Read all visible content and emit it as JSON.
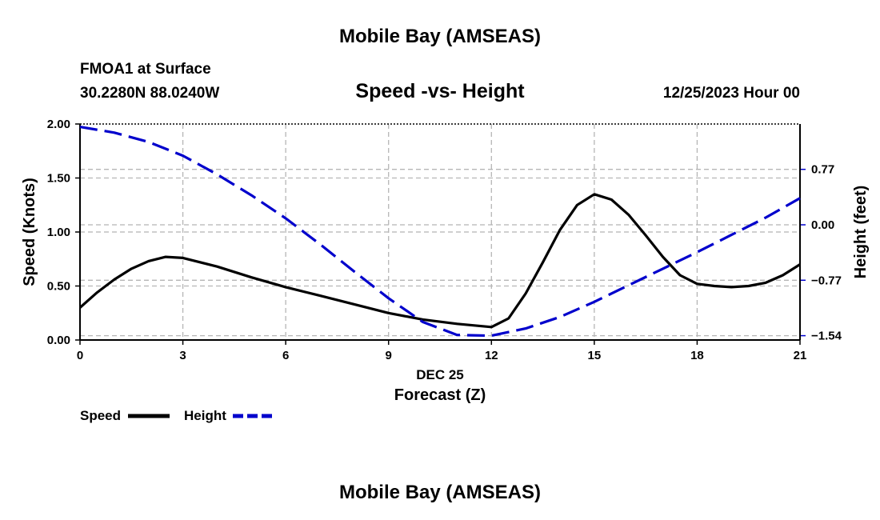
{
  "page": {
    "title_top": "Mobile Bay (AMSEAS)",
    "title_bottom": "Mobile Bay (AMSEAS)",
    "station": "FMOA1 at Surface",
    "coords": "30.2280N  88.0240W",
    "datetime": "12/25/2023 Hour 00"
  },
  "chart_data": {
    "type": "line",
    "title": "Speed -vs- Height",
    "xlabel_date": "DEC 25",
    "xlabel": "Forecast (Z)",
    "ylabel": "Speed (Knots)",
    "ylabel_right": "Height (feet)",
    "xlim": [
      0,
      21
    ],
    "ylim": [
      0,
      2
    ],
    "ylim_right": [
      -1.6,
      1.4
    ],
    "x_ticks": [
      "0",
      "3",
      "6",
      "9",
      "12",
      "15",
      "18",
      "21"
    ],
    "y_ticks": [
      "0.00",
      "0.50",
      "1.00",
      "1.50",
      "2.00"
    ],
    "y_ticks_right": [
      "−1.54",
      "−0.77",
      "0.00",
      "0.77"
    ],
    "legend": {
      "speed_label": "Speed",
      "height_label": "Height"
    },
    "colors": {
      "speed": "#000000",
      "height": "#0000cc",
      "grid": "#b5b5b5"
    },
    "series": [
      {
        "name": "Speed",
        "axis": "left",
        "style": "solid",
        "x": [
          0,
          0.5,
          1,
          1.5,
          2,
          2.5,
          3,
          4,
          5,
          6,
          7,
          8,
          9,
          10,
          11,
          12,
          12.5,
          13,
          13.5,
          14,
          14.5,
          15,
          15.5,
          16,
          16.5,
          17,
          17.5,
          18,
          18.5,
          19,
          19.5,
          20,
          20.5,
          21
        ],
        "values": [
          0.3,
          0.44,
          0.56,
          0.66,
          0.73,
          0.77,
          0.76,
          0.68,
          0.58,
          0.49,
          0.41,
          0.33,
          0.25,
          0.19,
          0.15,
          0.12,
          0.2,
          0.43,
          0.72,
          1.02,
          1.25,
          1.35,
          1.3,
          1.16,
          0.97,
          0.77,
          0.6,
          0.52,
          0.5,
          0.49,
          0.5,
          0.53,
          0.6,
          0.7
        ]
      },
      {
        "name": "Height",
        "axis": "right",
        "style": "dashed",
        "x": [
          0,
          1,
          2,
          3,
          4,
          5,
          6,
          7,
          8,
          9,
          10,
          11,
          12,
          13,
          14,
          15,
          16,
          17,
          18,
          19,
          20,
          21
        ],
        "values": [
          1.36,
          1.28,
          1.15,
          0.96,
          0.7,
          0.41,
          0.09,
          -0.27,
          -0.65,
          -1.02,
          -1.35,
          -1.53,
          -1.54,
          -1.44,
          -1.28,
          -1.07,
          -0.84,
          -0.61,
          -0.38,
          -0.14,
          0.1,
          0.37
        ]
      }
    ]
  }
}
